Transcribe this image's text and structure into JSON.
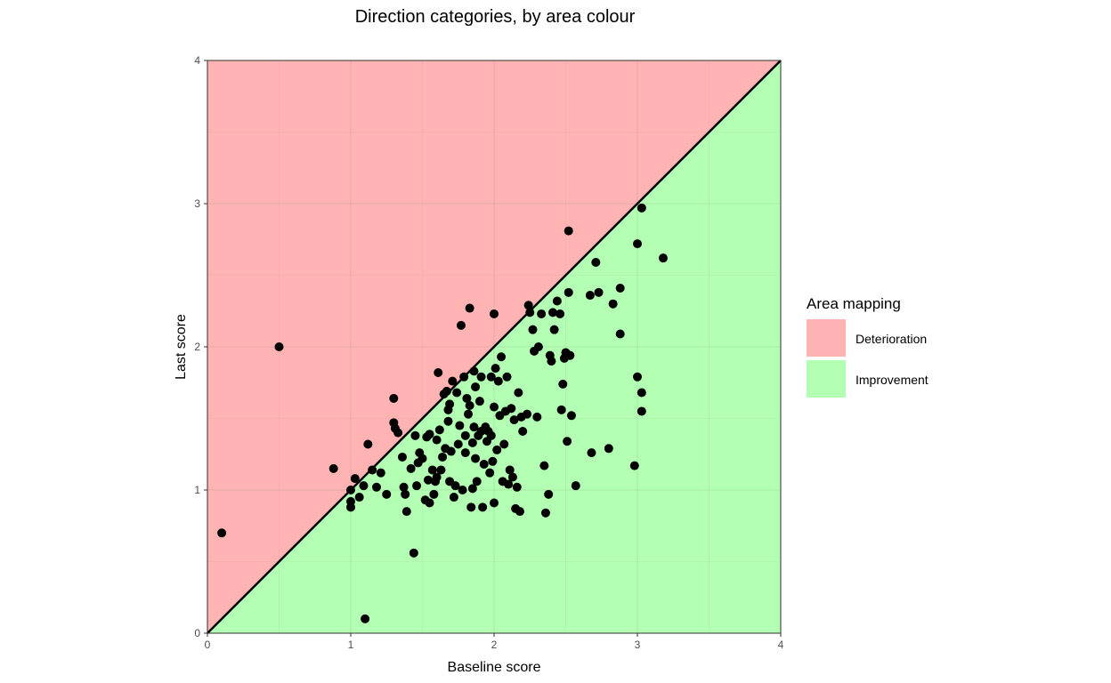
{
  "chart_data": {
    "type": "scatter",
    "title": "Direction categories, by area colour",
    "xlabel": "Baseline score",
    "ylabel": "Last score",
    "xlim": [
      0,
      4
    ],
    "ylim": [
      0,
      4
    ],
    "xticks": [
      "0",
      "1",
      "2",
      "3",
      "4"
    ],
    "yticks": [
      "0",
      "1",
      "2",
      "3",
      "4"
    ],
    "grid": true,
    "reference_line": "y = x",
    "areas": [
      {
        "label": "Deterioration",
        "region": "above diagonal",
        "color": "#FFB3B3"
      },
      {
        "label": "Improvement",
        "region": "below diagonal",
        "color": "#B3FFB3"
      }
    ],
    "legend": {
      "title": "Area mapping",
      "placement": "right",
      "items": [
        {
          "label": "Deterioration",
          "color": "#FFB3B3"
        },
        {
          "label": "Improvement",
          "color": "#B3FFB3"
        }
      ]
    },
    "point_color": "#000000",
    "points": [
      [
        0.1,
        0.7
      ],
      [
        0.5,
        2.0
      ],
      [
        1.1,
        0.1
      ],
      [
        0.88,
        1.15
      ],
      [
        1.0,
        1.0
      ],
      [
        1.0,
        0.88
      ],
      [
        1.0,
        0.92
      ],
      [
        1.03,
        1.08
      ],
      [
        1.06,
        0.95
      ],
      [
        1.09,
        1.03
      ],
      [
        1.12,
        1.32
      ],
      [
        1.15,
        1.14
      ],
      [
        1.18,
        1.02
      ],
      [
        1.21,
        1.12
      ],
      [
        1.25,
        0.97
      ],
      [
        1.3,
        1.64
      ],
      [
        1.3,
        1.47
      ],
      [
        1.31,
        1.43
      ],
      [
        1.33,
        1.4
      ],
      [
        1.36,
        1.23
      ],
      [
        1.37,
        1.02
      ],
      [
        1.38,
        0.97
      ],
      [
        1.39,
        0.85
      ],
      [
        1.42,
        1.15
      ],
      [
        1.44,
        0.56
      ],
      [
        1.45,
        1.38
      ],
      [
        1.46,
        1.03
      ],
      [
        1.47,
        1.19
      ],
      [
        1.48,
        1.26
      ],
      [
        1.5,
        1.22
      ],
      [
        1.52,
        0.93
      ],
      [
        1.53,
        1.37
      ],
      [
        1.54,
        1.07
      ],
      [
        1.55,
        1.39
      ],
      [
        1.55,
        0.91
      ],
      [
        1.57,
        1.14
      ],
      [
        1.58,
        0.97
      ],
      [
        1.59,
        1.06
      ],
      [
        1.6,
        1.35
      ],
      [
        1.6,
        1.09
      ],
      [
        1.61,
        1.82
      ],
      [
        1.62,
        1.42
      ],
      [
        1.63,
        1.14
      ],
      [
        1.64,
        1.23
      ],
      [
        1.65,
        1.67
      ],
      [
        1.66,
        1.29
      ],
      [
        1.67,
        1.69
      ],
      [
        1.68,
        1.48
      ],
      [
        1.68,
        1.56
      ],
      [
        1.69,
        1.6
      ],
      [
        1.69,
        1.06
      ],
      [
        1.7,
        1.27
      ],
      [
        1.71,
        1.76
      ],
      [
        1.72,
        0.95
      ],
      [
        1.73,
        1.03
      ],
      [
        1.74,
        1.68
      ],
      [
        1.75,
        1.32
      ],
      [
        1.76,
        1.45
      ],
      [
        1.77,
        2.15
      ],
      [
        1.78,
        1.0
      ],
      [
        1.79,
        1.79
      ],
      [
        1.8,
        1.38
      ],
      [
        1.8,
        1.26
      ],
      [
        1.81,
        1.64
      ],
      [
        1.82,
        1.53
      ],
      [
        1.83,
        2.27
      ],
      [
        1.83,
        1.59
      ],
      [
        1.84,
        0.88
      ],
      [
        1.85,
        1.33
      ],
      [
        1.85,
        1.01
      ],
      [
        1.86,
        1.83
      ],
      [
        1.86,
        1.44
      ],
      [
        1.87,
        1.72
      ],
      [
        1.87,
        1.22
      ],
      [
        1.88,
        1.06
      ],
      [
        1.89,
        1.38
      ],
      [
        1.9,
        1.62
      ],
      [
        1.91,
        1.79
      ],
      [
        1.91,
        1.41
      ],
      [
        1.92,
        0.88
      ],
      [
        1.93,
        1.18
      ],
      [
        1.94,
        1.44
      ],
      [
        1.95,
        1.34
      ],
      [
        1.96,
        1.41
      ],
      [
        1.97,
        1.12
      ],
      [
        1.98,
        1.38
      ],
      [
        1.98,
        1.79
      ],
      [
        1.99,
        1.2
      ],
      [
        2.0,
        2.23
      ],
      [
        2.0,
        1.58
      ],
      [
        2.0,
        0.91
      ],
      [
        2.01,
        1.85
      ],
      [
        2.02,
        1.28
      ],
      [
        2.03,
        1.76
      ],
      [
        2.04,
        1.52
      ],
      [
        2.05,
        1.93
      ],
      [
        2.06,
        1.06
      ],
      [
        2.07,
        1.32
      ],
      [
        2.08,
        1.55
      ],
      [
        2.09,
        1.79
      ],
      [
        2.1,
        1.04
      ],
      [
        2.11,
        1.14
      ],
      [
        2.12,
        1.57
      ],
      [
        2.13,
        1.09
      ],
      [
        2.14,
        1.49
      ],
      [
        2.15,
        0.87
      ],
      [
        2.16,
        1.02
      ],
      [
        2.17,
        1.68
      ],
      [
        2.18,
        0.85
      ],
      [
        2.19,
        1.51
      ],
      [
        2.2,
        1.41
      ],
      [
        2.23,
        1.53
      ],
      [
        2.24,
        2.29
      ],
      [
        2.25,
        2.24
      ],
      [
        2.27,
        2.12
      ],
      [
        2.28,
        1.97
      ],
      [
        2.3,
        1.51
      ],
      [
        2.31,
        2.0
      ],
      [
        2.33,
        2.23
      ],
      [
        2.35,
        1.17
      ],
      [
        2.36,
        0.84
      ],
      [
        2.38,
        0.97
      ],
      [
        2.39,
        1.94
      ],
      [
        2.4,
        1.9
      ],
      [
        2.41,
        2.24
      ],
      [
        2.42,
        2.12
      ],
      [
        2.44,
        2.32
      ],
      [
        2.46,
        2.23
      ],
      [
        2.47,
        1.56
      ],
      [
        2.48,
        1.74
      ],
      [
        2.49,
        1.92
      ],
      [
        2.5,
        1.96
      ],
      [
        2.51,
        1.34
      ],
      [
        2.52,
        2.38
      ],
      [
        2.53,
        1.94
      ],
      [
        2.54,
        1.52
      ],
      [
        2.57,
        1.03
      ],
      [
        2.52,
        2.81
      ],
      [
        2.67,
        2.36
      ],
      [
        2.68,
        1.26
      ],
      [
        2.71,
        2.59
      ],
      [
        2.73,
        2.38
      ],
      [
        2.8,
        1.29
      ],
      [
        2.83,
        2.3
      ],
      [
        2.88,
        2.41
      ],
      [
        2.88,
        2.09
      ],
      [
        2.98,
        1.17
      ],
      [
        3.0,
        2.72
      ],
      [
        3.0,
        1.79
      ],
      [
        3.03,
        2.97
      ],
      [
        3.03,
        1.68
      ],
      [
        3.03,
        1.55
      ],
      [
        3.18,
        2.62
      ]
    ]
  }
}
